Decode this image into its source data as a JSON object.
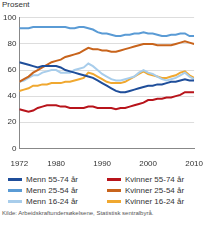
{
  "chart_data": {
    "type": "line",
    "y_label": "Prosent",
    "source": "Kilde: Arbeidskraftundersøkelsene, Statistisk sentralbyrå.",
    "x": [
      1972,
      1973,
      1974,
      1975,
      1976,
      1977,
      1978,
      1979,
      1980,
      1981,
      1982,
      1983,
      1984,
      1985,
      1986,
      1987,
      1988,
      1989,
      1990,
      1991,
      1992,
      1993,
      1994,
      1995,
      1996,
      1997,
      1998,
      1999,
      2000,
      2001,
      2002,
      2003,
      2004,
      2005,
      2006,
      2007,
      2008,
      2009,
      2010
    ],
    "xlim": [
      1972,
      2010
    ],
    "xticks": [
      1972,
      1980,
      1990,
      2000,
      2010
    ],
    "ylim": [
      0,
      100
    ],
    "yticks": [
      0,
      20,
      40,
      60,
      80,
      100
    ],
    "grid": true,
    "series": [
      {
        "name": "Menn 55-74 år",
        "color": "#1f4e9a",
        "values": [
          66,
          65,
          64,
          63,
          62,
          63,
          63,
          63,
          63,
          62,
          60,
          59,
          58,
          57,
          56,
          55,
          54,
          52,
          50,
          48,
          46,
          44,
          43,
          43,
          44,
          45,
          46,
          47,
          48,
          48,
          49,
          49,
          50,
          51,
          51,
          52,
          53,
          52,
          52
        ]
      },
      {
        "name": "Kvinner 55-74 år",
        "color": "#b8141b",
        "values": [
          30,
          29,
          28,
          29,
          31,
          32,
          33,
          33,
          33,
          32,
          32,
          31,
          31,
          31,
          31,
          32,
          32,
          31,
          31,
          31,
          31,
          30,
          31,
          31,
          32,
          33,
          34,
          35,
          37,
          37,
          38,
          38,
          39,
          39,
          40,
          41,
          43,
          43,
          43
        ]
      },
      {
        "name": "Menn 25-54 år",
        "color": "#5a9bd5",
        "values": [
          92,
          92,
          92,
          93,
          93,
          93,
          93,
          93,
          93,
          93,
          93,
          92,
          92,
          93,
          93,
          92,
          91,
          89,
          88,
          88,
          87,
          86,
          86,
          87,
          87,
          88,
          88,
          89,
          88,
          88,
          87,
          86,
          86,
          87,
          87,
          88,
          88,
          86,
          86
        ]
      },
      {
        "name": "Kvinner 25-54 år",
        "color": "#c8641c",
        "values": [
          51,
          53,
          55,
          58,
          60,
          62,
          64,
          66,
          67,
          68,
          70,
          71,
          72,
          73,
          75,
          77,
          76,
          76,
          75,
          75,
          74,
          74,
          75,
          76,
          77,
          78,
          79,
          80,
          80,
          80,
          79,
          79,
          79,
          79,
          80,
          81,
          82,
          81,
          80
        ]
      },
      {
        "name": "Menn 16-24 år",
        "color": "#a8cdeb",
        "values": [
          51,
          52,
          54,
          56,
          56,
          58,
          59,
          60,
          60,
          58,
          58,
          58,
          60,
          61,
          62,
          65,
          63,
          60,
          57,
          55,
          53,
          52,
          52,
          53,
          54,
          55,
          58,
          60,
          58,
          57,
          55,
          53,
          52,
          53,
          54,
          56,
          58,
          55,
          53
        ]
      },
      {
        "name": "Kvinner 16-24 år",
        "color": "#f0a830",
        "values": [
          44,
          45,
          46,
          48,
          48,
          49,
          49,
          50,
          50,
          50,
          51,
          51,
          52,
          53,
          54,
          58,
          57,
          55,
          53,
          51,
          50,
          50,
          50,
          51,
          53,
          55,
          57,
          59,
          57,
          56,
          55,
          54,
          54,
          55,
          56,
          58,
          59,
          56,
          54
        ]
      }
    ]
  }
}
